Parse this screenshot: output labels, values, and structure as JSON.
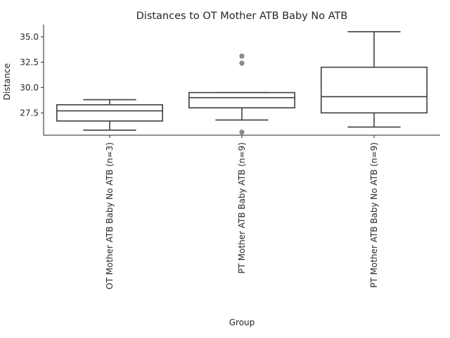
{
  "chart_data": {
    "type": "box",
    "title": "Distances to OT Mother ATB Baby No ATB",
    "xlabel": "Group",
    "ylabel": "Distance",
    "ylim": [
      25.3,
      36.2
    ],
    "yticks": [
      27.5,
      30.0,
      32.5,
      35.0
    ],
    "ytick_labels": [
      "27.5",
      "30.0",
      "32.5",
      "35.0"
    ],
    "grid": false,
    "categories": [
      "OT Mother ATB Baby No ATB (n=3)",
      "PT Mother ATB Baby ATB (n=9)",
      "PT Mother ATB Baby No ATB (n=9)"
    ],
    "boxes": [
      {
        "whisker_low": 25.8,
        "q1": 26.7,
        "median": 27.7,
        "q3": 28.3,
        "whisker_high": 28.8,
        "fliers": []
      },
      {
        "whisker_low": 26.8,
        "q1": 28.0,
        "median": 29.0,
        "q3": 29.5,
        "whisker_high": 29.5,
        "fliers": [
          33.1,
          32.4,
          25.6
        ]
      },
      {
        "whisker_low": 26.1,
        "q1": 27.5,
        "median": 29.1,
        "q3": 32.0,
        "whisker_high": 35.5,
        "fliers": []
      }
    ]
  }
}
